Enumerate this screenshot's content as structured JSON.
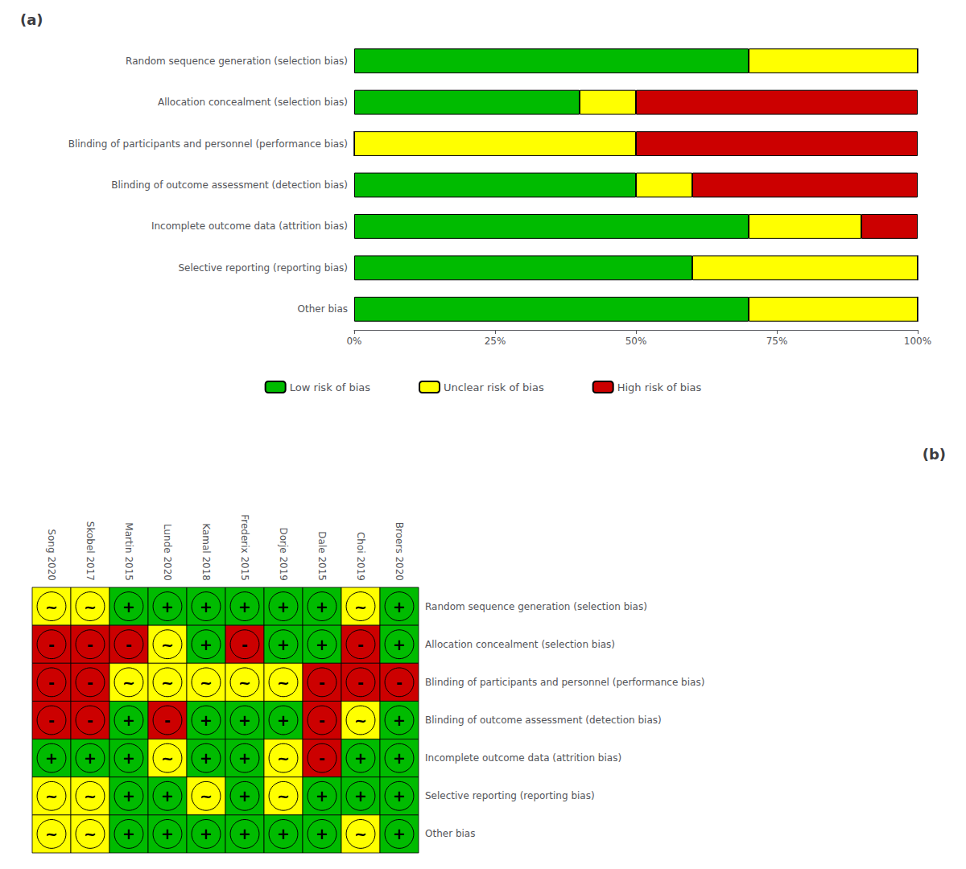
{
  "chart_data": [
    {
      "type": "bar",
      "title": "(a)",
      "orientation": "horizontal",
      "stacked": true,
      "categories": [
        "Random sequence generation (selection bias)",
        "Allocation concealment (selection bias)",
        "Blinding of participants and personnel (performance bias)",
        "Blinding of outcome assessment (detection bias)",
        "Incomplete outcome data (attrition bias)",
        "Selective reporting (reporting bias)",
        "Other bias"
      ],
      "series": [
        {
          "name": "Low risk of bias",
          "color": "#00bb00",
          "values": [
            70,
            40,
            0,
            50,
            70,
            60,
            70
          ]
        },
        {
          "name": "Unclear risk of bias",
          "color": "#ffff00",
          "values": [
            30,
            10,
            50,
            10,
            20,
            40,
            30
          ]
        },
        {
          "name": "High risk of bias",
          "color": "#cc0000",
          "values": [
            0,
            50,
            50,
            40,
            10,
            0,
            0
          ]
        }
      ],
      "xlim": [
        0,
        100
      ],
      "xticks": [
        {
          "value": 0,
          "label": "0%"
        },
        {
          "value": 25,
          "label": "25%"
        },
        {
          "value": 50,
          "label": "50%"
        },
        {
          "value": 75,
          "label": "75%"
        },
        {
          "value": 100,
          "label": "100%"
        }
      ],
      "grid": false,
      "legend": "bottom"
    },
    {
      "type": "heatmap",
      "title": "(b)",
      "categories": [
        "Song 2020",
        "Skobel 2017",
        "Martin 2015",
        "Lunde 2020",
        "Kamal 2018",
        "Frederix 2015",
        "Dorje 2019",
        "Dale 2015",
        "Choi 2019",
        "Broers 2020"
      ],
      "rows": [
        "Random sequence generation (selection bias)",
        "Allocation concealment (selection bias)",
        "Blinding of participants and personnel (performance bias)",
        "Blinding of outcome assessment (detection bias)",
        "Incomplete outcome data (attrition bias)",
        "Selective reporting (reporting bias)",
        "Other bias"
      ],
      "values": [
        [
          "~",
          "~",
          "+",
          "+",
          "+",
          "+",
          "+",
          "+",
          "~",
          "+"
        ],
        [
          "-",
          "-",
          "-",
          "~",
          "+",
          "-",
          "+",
          "+",
          "-",
          "+"
        ],
        [
          "-",
          "-",
          "~",
          "~",
          "~",
          "~",
          "~",
          "-",
          "-",
          "-"
        ],
        [
          "-",
          "-",
          "+",
          "-",
          "+",
          "+",
          "+",
          "-",
          "~",
          "+"
        ],
        [
          "+",
          "+",
          "+",
          "~",
          "+",
          "+",
          "~",
          "-",
          "+",
          "+"
        ],
        [
          "~",
          "~",
          "+",
          "+",
          "~",
          "+",
          "~",
          "+",
          "+",
          "+"
        ],
        [
          "~",
          "~",
          "+",
          "+",
          "+",
          "+",
          "+",
          "+",
          "~",
          "+"
        ]
      ],
      "colors": [
        [
          "#ffff00",
          "#ffff00",
          "#00bb00",
          "#00bb00",
          "#00bb00",
          "#00bb00",
          "#00bb00",
          "#00bb00",
          "#ffff00",
          "#00bb00"
        ],
        [
          "#cc0000",
          "#cc0000",
          "#cc0000",
          "#ffff00",
          "#00bb00",
          "#cc0000",
          "#00bb00",
          "#00bb00",
          "#cc0000",
          "#00bb00"
        ],
        [
          "#cc0000",
          "#cc0000",
          "#ffff00",
          "#ffff00",
          "#ffff00",
          "#ffff00",
          "#ffff00",
          "#cc0000",
          "#cc0000",
          "#cc0000"
        ],
        [
          "#cc0000",
          "#cc0000",
          "#00bb00",
          "#cc0000",
          "#00bb00",
          "#00bb00",
          "#00bb00",
          "#cc0000",
          "#ffff00",
          "#00bb00"
        ],
        [
          "#00bb00",
          "#00bb00",
          "#00bb00",
          "#ffff00",
          "#00bb00",
          "#00bb00",
          "#ffff00",
          "#cc0000",
          "#00bb00",
          "#00bb00"
        ],
        [
          "#ffff00",
          "#ffff00",
          "#00bb00",
          "#00bb00",
          "#ffff00",
          "#00bb00",
          "#ffff00",
          "#00bb00",
          "#00bb00",
          "#00bb00"
        ],
        [
          "#ffff00",
          "#ffff00",
          "#00bb00",
          "#00bb00",
          "#00bb00",
          "#00bb00",
          "#00bb00",
          "#00bb00",
          "#ffff00",
          "#00bb00"
        ]
      ],
      "data_labels": true,
      "grid": false
    }
  ]
}
